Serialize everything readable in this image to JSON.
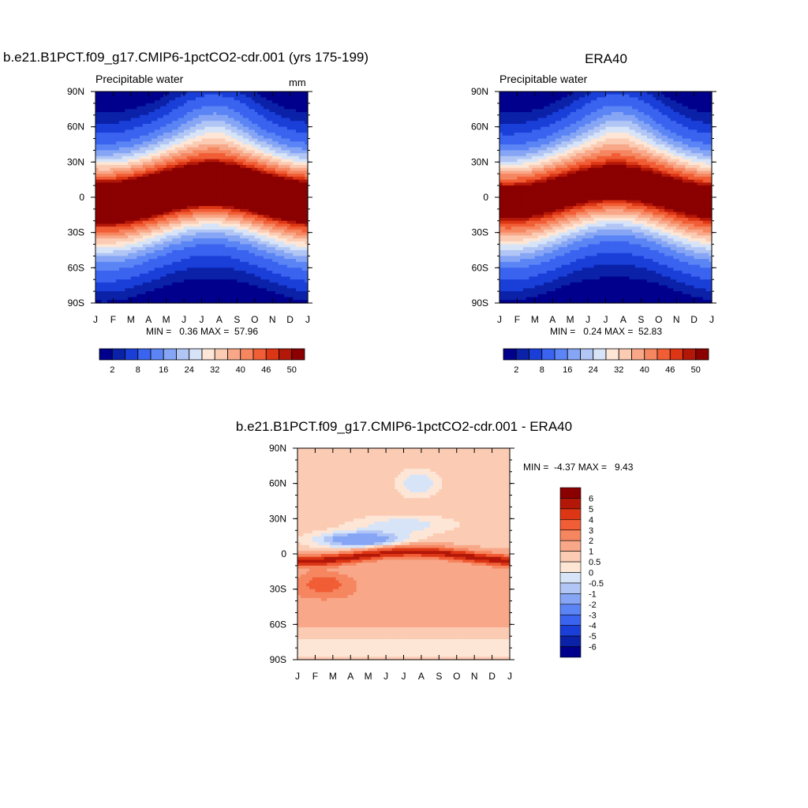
{
  "chart_data": [
    {
      "type": "heatmap",
      "title": "b.e21.B1PCT.f09_g17.CMIP6-1pctCO2-cdr.001 (yrs 175-199)",
      "subtitle_left": "Precipitable water",
      "units": "mm",
      "x_ticks": [
        "J",
        "F",
        "M",
        "A",
        "M",
        "J",
        "J",
        "A",
        "S",
        "O",
        "N",
        "D",
        "J"
      ],
      "y_ticks": [
        "90N",
        "60N",
        "30N",
        "0",
        "30S",
        "60S",
        "90S"
      ],
      "stats": "MIN =   0.36 MAX =  57.96",
      "min": 0.36,
      "max": 57.96,
      "peak_lat": 3,
      "peak_swing": 6,
      "polar_n": 3,
      "polar_s": 1,
      "colorbar_labels": [
        "2",
        "8",
        "16",
        "24",
        "32",
        "40",
        "46",
        "50"
      ],
      "levels": [
        1,
        2,
        4,
        8,
        12,
        16,
        20,
        24,
        28,
        32,
        36,
        40,
        44,
        46,
        48,
        50
      ]
    },
    {
      "type": "heatmap",
      "title": "ERA40",
      "subtitle_left": "Precipitable water",
      "units": "",
      "x_ticks": [
        "J",
        "F",
        "M",
        "A",
        "M",
        "J",
        "J",
        "A",
        "S",
        "O",
        "N",
        "D",
        "J"
      ],
      "y_ticks": [
        "90N",
        "60N",
        "30N",
        "0",
        "30S",
        "60S",
        "90S"
      ],
      "stats": "MIN =   0.24 MAX =  52.83",
      "min": 0.24,
      "max": 52.83,
      "peak_lat": 4,
      "peak_swing": 7,
      "polar_n": 1,
      "polar_s": 1,
      "colorbar_labels": [
        "2",
        "8",
        "16",
        "24",
        "32",
        "40",
        "46",
        "50"
      ],
      "levels": [
        1,
        2,
        4,
        8,
        12,
        16,
        20,
        24,
        28,
        32,
        36,
        40,
        44,
        46,
        48,
        50
      ]
    },
    {
      "type": "heatmap",
      "title": "b.e21.B1PCT.f09_g17.CMIP6-1pctCO2-cdr.001 - ERA40",
      "x_ticks": [
        "J",
        "F",
        "M",
        "A",
        "M",
        "J",
        "J",
        "A",
        "S",
        "O",
        "N",
        "D",
        "J"
      ],
      "y_ticks": [
        "90N",
        "60N",
        "30N",
        "0",
        "30S",
        "60S",
        "90S"
      ],
      "stats": "MIN =  -4.37 MAX =   9.43",
      "min": -4.37,
      "max": 9.43,
      "colorbar_labels": [
        "6",
        "5",
        "4",
        "3",
        "2",
        "1",
        "0.5",
        "0",
        "-0.5",
        "-1",
        "-2",
        "-3",
        "-4",
        "-5",
        "-6"
      ],
      "levels": [
        -6,
        -5,
        -4,
        -3,
        -2,
        -1,
        -0.5,
        0,
        0.5,
        1,
        2,
        3,
        4,
        5,
        6
      ]
    }
  ],
  "colors": {
    "full_palette": [
      "#00008c",
      "#0a21a8",
      "#1a3fd8",
      "#3a63f0",
      "#5b84f5",
      "#86a6f5",
      "#b1c6f5",
      "#d7e4f8",
      "#fde6d6",
      "#fbcbb3",
      "#f8a889",
      "#f58660",
      "#f15d35",
      "#dc3615",
      "#b31708",
      "#8b0000"
    ],
    "diff_palette": [
      "#00008c",
      "#0a21a8",
      "#1a3fd8",
      "#3a63f0",
      "#5b84f5",
      "#86a6f5",
      "#b1c6f5",
      "#d7e4f8",
      "#fde6d6",
      "#fbcbb3",
      "#f8a889",
      "#f58660",
      "#f15d35",
      "#dc3615",
      "#b31708",
      "#8b0000"
    ]
  }
}
